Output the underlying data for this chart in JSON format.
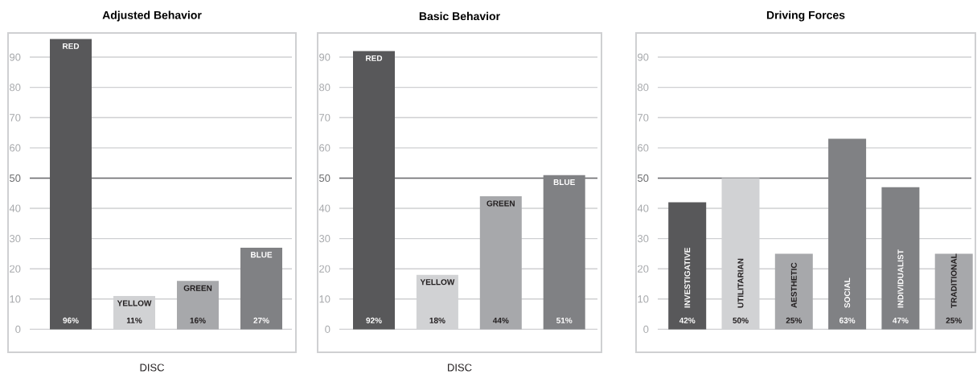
{
  "chart_data": [
    {
      "type": "bar",
      "title": "Adjusted Behavior",
      "xlabel": "DISC",
      "categories": [
        "RED",
        "YELLOW",
        "GREEN",
        "BLUE"
      ],
      "values": [
        96,
        11,
        16,
        27
      ],
      "colors": [
        "#58585a",
        "#d1d2d4",
        "#a7a8ab",
        "#808184"
      ],
      "value_labels": [
        "96%",
        "11%",
        "16%",
        "27%"
      ],
      "ylim": [
        -7.6,
        98
      ],
      "yticks": [
        0,
        10,
        20,
        30,
        40,
        50,
        60,
        70,
        80,
        90
      ],
      "grid": "y",
      "ref_lines": [
        {
          "axis": "y",
          "value": 50,
          "color": "#6d6e70"
        }
      ]
    },
    {
      "type": "bar",
      "title": "Basic Behavior",
      "xlabel": "DISC",
      "categories": [
        "RED",
        "YELLOW",
        "GREEN",
        "BLUE"
      ],
      "values": [
        92,
        18,
        44,
        51
      ],
      "colors": [
        "#58585a",
        "#d1d2d4",
        "#a7a8ab",
        "#808184"
      ],
      "value_labels": [
        "92%",
        "18%",
        "44%",
        "51%"
      ],
      "ylim": [
        -7.6,
        98
      ],
      "yticks": [
        0,
        10,
        20,
        30,
        40,
        50,
        60,
        70,
        80,
        90
      ],
      "grid": "y",
      "ref_lines": [
        {
          "axis": "y",
          "value": 50,
          "color": "#6d6e70"
        }
      ]
    },
    {
      "type": "bar",
      "title": "Driving Forces",
      "categories": [
        "INVESTIGATIVE",
        "UTILITARIAN",
        "AESTHETIC",
        "SOCIAL",
        "INDIVIDUALIST",
        "TRADITIONAL"
      ],
      "values": [
        42,
        50,
        25,
        63,
        47,
        25
      ],
      "colors": [
        "#58585a",
        "#d1d2d4",
        "#a7a8ab",
        "#808184",
        "#808184",
        "#a7a8ab"
      ],
      "value_labels": [
        "42%",
        "50%",
        "25%",
        "63%",
        "47%",
        "25%"
      ],
      "ylim": [
        -7.6,
        98
      ],
      "yticks": [
        0,
        10,
        20,
        30,
        40,
        50,
        60,
        70,
        80,
        90
      ],
      "grid": "y",
      "ref_lines": [
        {
          "axis": "y",
          "value": 50,
          "color": "#6d6e70"
        }
      ]
    }
  ]
}
